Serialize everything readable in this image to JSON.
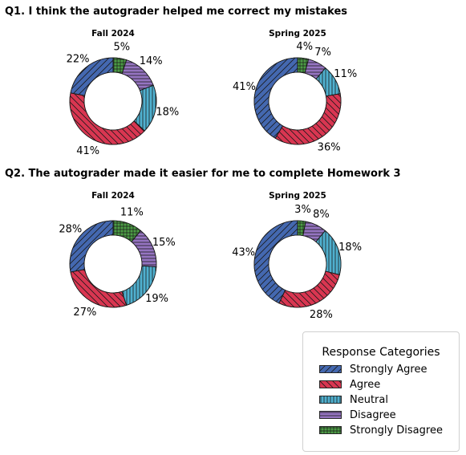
{
  "colors": {
    "Strongly Agree": "#4468b0",
    "Agree": "#d93651",
    "Neutral": "#4fb0cf",
    "Disagree": "#9574c1",
    "Strongly Disagree": "#4c9d45"
  },
  "chart_data": [
    {
      "type": "pie",
      "question": "Q1. I think the autograder helped me correct my mistakes",
      "title": "Fall 2024",
      "categories": [
        "Strongly Agree",
        "Agree",
        "Neutral",
        "Disagree",
        "Strongly Disagree"
      ],
      "values": [
        22,
        41,
        18,
        14,
        5
      ],
      "labels": [
        "22%",
        "41%",
        "18%",
        "14%",
        "5%"
      ]
    },
    {
      "type": "pie",
      "question": "Q1. I think the autograder helped me correct my mistakes",
      "title": "Spring 2025",
      "categories": [
        "Strongly Agree",
        "Agree",
        "Neutral",
        "Disagree",
        "Strongly Disagree"
      ],
      "values": [
        41,
        36,
        11,
        7,
        4
      ],
      "labels": [
        "41%",
        "36%",
        "11%",
        "7%",
        "4%"
      ]
    },
    {
      "type": "pie",
      "question": "Q2. The autograder made it easier for me to complete Homework 3",
      "title": "Fall 2024",
      "categories": [
        "Strongly Agree",
        "Agree",
        "Neutral",
        "Disagree",
        "Strongly Disagree"
      ],
      "values": [
        28,
        27,
        19,
        15,
        11
      ],
      "labels": [
        "28%",
        "27%",
        "19%",
        "15%",
        "11%"
      ]
    },
    {
      "type": "pie",
      "question": "Q2. The autograder made it easier for me to complete Homework 3",
      "title": "Spring 2025",
      "categories": [
        "Strongly Agree",
        "Agree",
        "Neutral",
        "Disagree",
        "Strongly Disagree"
      ],
      "values": [
        43,
        28,
        18,
        8,
        3
      ],
      "labels": [
        "43%",
        "28%",
        "18%",
        "8%",
        "3%"
      ]
    }
  ],
  "questions": {
    "q1": "Q1. I think the autograder helped me correct my mistakes",
    "q2": "Q2. The autograder made it easier for me to complete Homework 3"
  },
  "legend": {
    "title": "Response Categories",
    "placement": "bottom-right",
    "items": [
      "Strongly Agree",
      "Agree",
      "Neutral",
      "Disagree",
      "Strongly Disagree"
    ]
  }
}
